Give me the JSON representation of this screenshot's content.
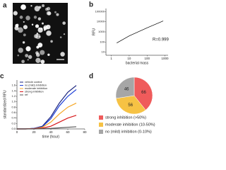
{
  "image_panel": {
    "label": "a"
  },
  "chart_data": [
    {
      "type": "line",
      "label": "b",
      "ylabel": "RFU",
      "xlabel": "bacterial mass",
      "annotation": "R=0.999",
      "xscale": "log",
      "yscale": "log",
      "x": [
        2,
        10,
        100,
        800
      ],
      "values": [
        80,
        400,
        2500,
        12000
      ],
      "color": "#000000",
      "xlim": [
        0.5,
        1500
      ],
      "xticks": [
        1,
        10,
        100,
        1000
      ],
      "ylim": [
        5,
        200000
      ],
      "yticks": [
        10,
        100,
        1000,
        10000,
        100000
      ]
    },
    {
      "type": "line",
      "label": "c",
      "ylabel": "standardized RFU",
      "xlabel": "time (hour)",
      "legend": "top-left",
      "x": [
        0,
        10,
        20,
        30,
        40,
        50,
        60,
        70
      ],
      "series": [
        {
          "name": "vehicle control",
          "color": "#1a237e",
          "values": [
            0,
            0,
            0.02,
            0.1,
            0.45,
            0.95,
            1.35,
            1.6
          ]
        },
        {
          "name": "no (mild) inhibition",
          "color": "#1e40d8",
          "values": [
            0,
            0,
            0.02,
            0.08,
            0.38,
            0.85,
            1.2,
            1.45
          ]
        },
        {
          "name": "moderate inhibition",
          "color": "#f5a623",
          "values": [
            0,
            0,
            0.01,
            0.06,
            0.25,
            0.55,
            0.8,
            0.95
          ]
        },
        {
          "name": "strong inhibition",
          "color": "#d7191c",
          "values": [
            0,
            0,
            0.01,
            0.03,
            0.1,
            0.25,
            0.4,
            0.5
          ]
        },
        {
          "name": "ref",
          "color": "#555555",
          "values": [
            0,
            0,
            0,
            0.01,
            0.02,
            0.04,
            0.06,
            0.08
          ]
        }
      ],
      "xlim": [
        0,
        80
      ],
      "xticks": [
        0,
        20,
        40,
        60,
        80
      ],
      "ylim": [
        0,
        1.8
      ],
      "yticks": [
        {
          "value": 0,
          "label": "0.0"
        },
        0.2,
        0.4,
        0.6,
        0.8,
        {
          "value": 1,
          "label": "1.0"
        },
        1.2,
        1.4,
        1.6
      ]
    },
    {
      "type": "pie",
      "label": "d",
      "categories": [
        "strong inhibition (>50%)",
        "moderate inhibition (10-50%)",
        "no (mild) inhibition (0-10%)"
      ],
      "values": [
        66,
        56,
        46
      ],
      "colors": [
        "#ef5b5b",
        "#f6c244",
        "#a6a6a6"
      ]
    }
  ]
}
